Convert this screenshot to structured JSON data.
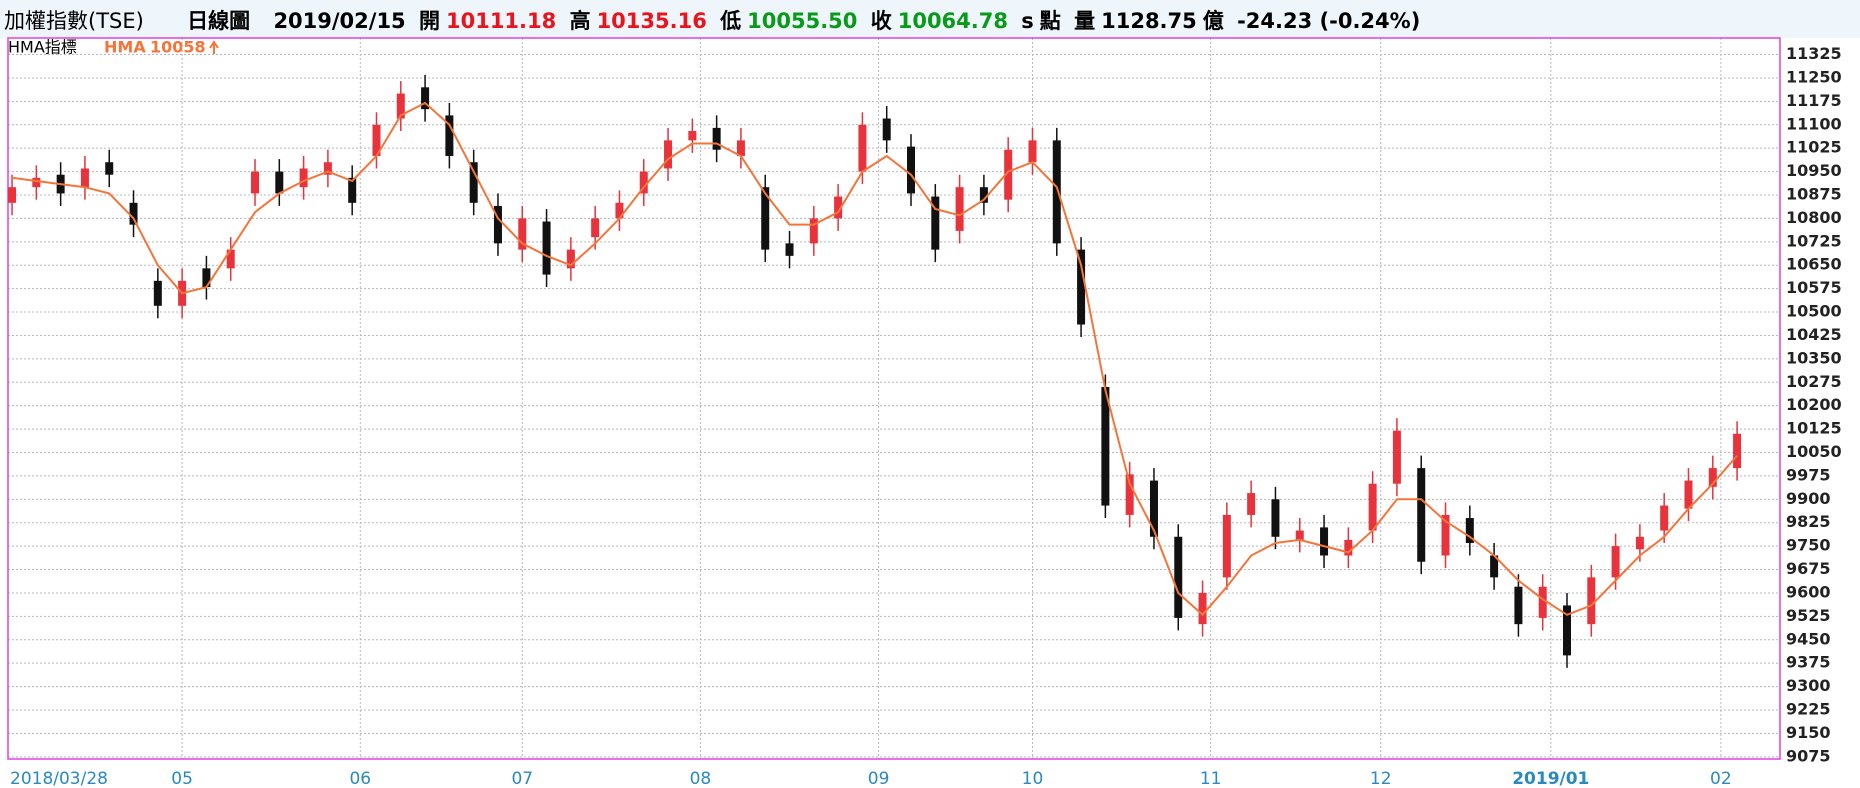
{
  "header": {
    "index": "加權指數(TSE)",
    "chart": "日線圖",
    "date": "2019/02/15",
    "open_label": "開",
    "open": "10111.18",
    "high_label": "高",
    "high": "10135.16",
    "low_label": "低",
    "low": "10055.50",
    "close_label": "收",
    "close": "10064.78",
    "unit_s": "s",
    "unit": "點",
    "volume_label": "量",
    "volume": "1128.75",
    "volume_unit": "億",
    "change": "-24.23 (-0.24%)"
  },
  "chart_data": {
    "type": "candlestick",
    "panel_label": "HMA指標",
    "up_color": "#e8323c",
    "down_color": "#111111",
    "border_color": "#e040e0",
    "grid": true,
    "x": [
      0,
      3,
      6,
      9,
      12,
      15,
      18,
      21,
      24,
      27,
      30,
      33,
      36,
      39,
      42,
      45,
      48,
      51,
      54,
      57,
      60,
      63,
      66,
      69,
      72,
      75,
      78,
      81,
      84,
      87,
      90,
      93,
      96,
      99,
      102,
      105,
      108,
      111,
      114,
      117,
      120,
      123,
      126,
      129,
      132,
      135,
      138,
      141,
      144,
      147,
      150,
      153,
      156,
      159,
      162,
      165,
      168,
      171,
      174,
      177,
      180,
      183,
      186,
      189,
      192,
      195,
      198,
      201,
      204,
      207,
      210,
      213
    ],
    "open": [
      10850,
      10900,
      10940,
      10900,
      10980,
      10850,
      10600,
      10520,
      10640,
      10640,
      10880,
      10950,
      10900,
      10940,
      10930,
      11000,
      11120,
      11220,
      11130,
      10980,
      10840,
      10700,
      10790,
      10640,
      10740,
      10800,
      10880,
      10960,
      11050,
      11090,
      11000,
      10900,
      10720,
      10720,
      10800,
      10950,
      11120,
      11030,
      10870,
      10760,
      10900,
      10860,
      10980,
      11050,
      10700,
      10260,
      9850,
      9960,
      9780,
      9500,
      9650,
      9850,
      9900,
      9770,
      9810,
      9720,
      9800,
      9950,
      10000,
      9720,
      9840,
      9720,
      9620,
      9520,
      9560,
      9500,
      9650,
      9740,
      9800,
      9870,
      9940,
      10000
    ],
    "high": [
      10940,
      10970,
      10980,
      11000,
      11020,
      10890,
      10640,
      10640,
      10680,
      10740,
      10990,
      10990,
      11000,
      11020,
      10970,
      11140,
      11240,
      11260,
      11170,
      11020,
      10880,
      10840,
      10830,
      10740,
      10840,
      10890,
      10990,
      11090,
      11120,
      11130,
      11090,
      10940,
      10760,
      10840,
      10910,
      11140,
      11160,
      11070,
      10910,
      10940,
      10940,
      11060,
      11090,
      11090,
      10740,
      10300,
      10020,
      10000,
      9820,
      9640,
      9890,
      9960,
      9940,
      9840,
      9850,
      9810,
      9990,
      10160,
      10040,
      9890,
      9880,
      9760,
      9660,
      9660,
      9600,
      9690,
      9790,
      9820,
      9920,
      10000,
      10040,
      10150
    ],
    "low": [
      10810,
      10860,
      10840,
      10860,
      10900,
      10740,
      10480,
      10480,
      10540,
      10600,
      10840,
      10840,
      10860,
      10900,
      10810,
      10960,
      11080,
      11110,
      10960,
      10810,
      10680,
      10660,
      10580,
      10600,
      10700,
      10760,
      10840,
      10920,
      11010,
      10980,
      10960,
      10660,
      10640,
      10680,
      10760,
      10910,
      11010,
      10840,
      10660,
      10720,
      10810,
      10820,
      10940,
      10680,
      10420,
      9840,
      9810,
      9740,
      9480,
      9460,
      9610,
      9810,
      9740,
      9730,
      9680,
      9680,
      9760,
      9910,
      9660,
      9680,
      9720,
      9610,
      9460,
      9480,
      9360,
      9460,
      9610,
      9700,
      9760,
      9830,
      9900,
      9960
    ],
    "close": [
      10900,
      10930,
      10880,
      10960,
      10940,
      10780,
      10520,
      10600,
      10580,
      10700,
      10950,
      10880,
      10960,
      10980,
      10850,
      11100,
      11200,
      11150,
      11000,
      10850,
      10720,
      10800,
      10620,
      10700,
      10800,
      10850,
      10950,
      11050,
      11080,
      11020,
      11050,
      10700,
      10680,
      10800,
      10870,
      11100,
      11050,
      10880,
      10700,
      10900,
      10850,
      11020,
      11050,
      10720,
      10460,
      9880,
      9980,
      9780,
      9520,
      9600,
      9850,
      9920,
      9780,
      9800,
      9720,
      9770,
      9950,
      10120,
      9700,
      9850,
      9760,
      9650,
      9500,
      9620,
      9400,
      9650,
      9750,
      9780,
      9880,
      9960,
      10000,
      10110
    ],
    "hma": {
      "name": "HMA",
      "last": 10058,
      "color": "#f4753a",
      "values": [
        10930,
        10920,
        10910,
        10900,
        10880,
        10800,
        10650,
        10560,
        10580,
        10700,
        10820,
        10880,
        10920,
        10950,
        10920,
        11000,
        11130,
        11170,
        11100,
        10950,
        10800,
        10720,
        10680,
        10650,
        10720,
        10800,
        10900,
        10990,
        11040,
        11040,
        11000,
        10880,
        10780,
        10780,
        10820,
        10950,
        11000,
        10940,
        10830,
        10810,
        10860,
        10950,
        10980,
        10900,
        10650,
        10250,
        9950,
        9800,
        9600,
        9530,
        9620,
        9720,
        9760,
        9770,
        9750,
        9730,
        9800,
        9900,
        9900,
        9830,
        9780,
        9720,
        9640,
        9580,
        9530,
        9560,
        9640,
        9720,
        9780,
        9870,
        9950,
        10040
      ]
    },
    "xlim": [
      -0.5,
      218.3
    ],
    "ylim": [
      9068,
      11378
    ],
    "xticks": [
      {
        "value": 0,
        "label": "2018/03/28"
      },
      {
        "value": 21,
        "label": "05"
      },
      {
        "value": 43,
        "label": "06"
      },
      {
        "value": 63,
        "label": "07"
      },
      {
        "value": 85,
        "label": "08"
      },
      {
        "value": 107,
        "label": "09"
      },
      {
        "value": 126,
        "label": "10"
      },
      {
        "value": 148,
        "label": "11"
      },
      {
        "value": 169,
        "label": "12"
      },
      {
        "value": 190,
        "label": "2019/01"
      },
      {
        "value": 211,
        "label": "02"
      }
    ],
    "yticks": [
      9075,
      9150,
      9225,
      9300,
      9375,
      9450,
      9525,
      9600,
      9675,
      9750,
      9825,
      9900,
      9975,
      10050,
      10125,
      10200,
      10275,
      10350,
      10425,
      10500,
      10575,
      10650,
      10725,
      10800,
      10875,
      10950,
      11025,
      11100,
      11175,
      11250,
      11325
    ]
  }
}
